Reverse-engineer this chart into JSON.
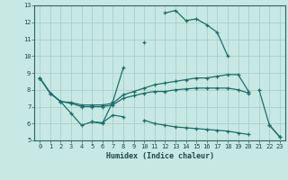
{
  "title": "",
  "xlabel": "Humidex (Indice chaleur)",
  "xlim": [
    -0.5,
    23.5
  ],
  "ylim": [
    5,
    13
  ],
  "xticks": [
    0,
    1,
    2,
    3,
    4,
    5,
    6,
    7,
    8,
    9,
    10,
    11,
    12,
    13,
    14,
    15,
    16,
    17,
    18,
    19,
    20,
    21,
    22,
    23
  ],
  "yticks": [
    5,
    6,
    7,
    8,
    9,
    10,
    11,
    12,
    13
  ],
  "bg_color": "#c8e8e4",
  "line_color": "#1e6e6a",
  "grid_color": "#a0ccc8",
  "lines": [
    {
      "x": [
        0,
        1,
        2,
        3,
        4,
        5,
        6,
        7,
        8,
        9,
        10,
        11,
        12,
        13,
        14,
        15,
        16,
        17,
        18,
        19,
        20,
        21,
        22,
        23
      ],
      "y": [
        8.7,
        7.8,
        7.3,
        6.6,
        5.9,
        6.1,
        6.0,
        7.3,
        9.3,
        null,
        10.8,
        null,
        12.55,
        12.7,
        12.1,
        12.2,
        11.85,
        11.4,
        10.0,
        null,
        null,
        8.0,
        5.9,
        5.2
      ]
    },
    {
      "x": [
        0,
        1,
        2,
        3,
        4,
        5,
        6,
        7,
        8,
        9,
        10,
        11,
        12,
        13,
        14,
        15,
        16,
        17,
        18,
        19,
        20,
        21,
        22,
        23
      ],
      "y": [
        8.7,
        7.8,
        7.3,
        7.25,
        7.1,
        7.1,
        7.1,
        7.2,
        7.7,
        7.9,
        8.1,
        8.3,
        8.4,
        8.5,
        8.6,
        8.7,
        8.7,
        8.8,
        8.9,
        8.9,
        7.9,
        null,
        null,
        null
      ]
    },
    {
      "x": [
        0,
        1,
        2,
        3,
        4,
        5,
        6,
        7,
        8,
        9,
        10,
        11,
        12,
        13,
        14,
        15,
        16,
        17,
        18,
        19,
        20,
        21,
        22,
        23
      ],
      "y": [
        8.7,
        7.8,
        7.3,
        7.2,
        7.0,
        7.0,
        7.0,
        7.1,
        7.5,
        7.65,
        7.8,
        7.9,
        7.9,
        8.0,
        8.05,
        8.1,
        8.1,
        8.1,
        8.1,
        8.0,
        7.8,
        null,
        null,
        null
      ]
    },
    {
      "x": [
        0,
        1,
        2,
        3,
        4,
        5,
        6,
        7,
        8,
        9,
        10,
        11,
        12,
        13,
        14,
        15,
        16,
        17,
        18,
        19,
        20,
        21,
        22,
        23
      ],
      "y": [
        null,
        null,
        null,
        null,
        null,
        6.1,
        6.05,
        6.5,
        6.4,
        null,
        6.2,
        6.0,
        5.9,
        5.8,
        5.75,
        5.7,
        5.65,
        5.6,
        5.55,
        5.45,
        5.35,
        null,
        5.9,
        5.2
      ]
    }
  ]
}
